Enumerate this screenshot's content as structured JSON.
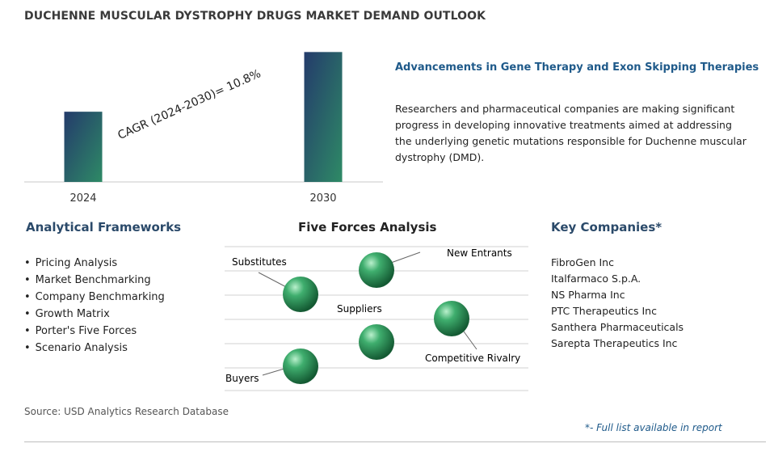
{
  "page_title": "DUCHENNE MUSCULAR DYSTROPHY DRUGS MARKET DEMAND OUTLOOK",
  "chart_data": {
    "type": "bar",
    "categories": [
      "2024",
      "2030"
    ],
    "values": [
      1.0,
      1.85
    ],
    "ylim": [
      0,
      1.9
    ],
    "annotation": "CAGR (2024-2030)=  10.8%",
    "grid": false,
    "colors": {
      "bar_top": "#243b6b",
      "bar_bottom": "#2e8a66"
    }
  },
  "trend": {
    "title": "Advancements in Gene Therapy and Exon Skipping Therapies",
    "body": "Researchers and pharmaceutical companies are making significant progress in developing innovative treatments aimed at addressing the underlying genetic mutations responsible for Duchenne muscular dystrophy (DMD)."
  },
  "frameworks": {
    "heading": "Analytical Frameworks",
    "items": [
      "Pricing Analysis",
      "Market Benchmarking",
      "Company Benchmarking",
      "Growth Matrix",
      "Porter's Five Forces",
      "Scenario Analysis"
    ]
  },
  "five_forces": {
    "heading": "Five Forces Analysis",
    "labels": {
      "substitutes": "Substitutes",
      "new_entrants": "New Entrants",
      "suppliers": "Suppliers",
      "competitive_rivalry": "Competitive Rivalry",
      "buyers": "Buyers"
    },
    "sphere_color": "#2f9a5e"
  },
  "companies": {
    "heading": "Key Companies*",
    "items": [
      "FibroGen Inc",
      "Italfarmaco S.p.A.",
      "NS Pharma Inc",
      "PTC Therapeutics Inc",
      "Santhera Pharmaceuticals",
      "Sarepta Therapeutics Inc"
    ]
  },
  "source": "Source: USD Analytics Research Database",
  "footnote": "*- Full list available in report"
}
